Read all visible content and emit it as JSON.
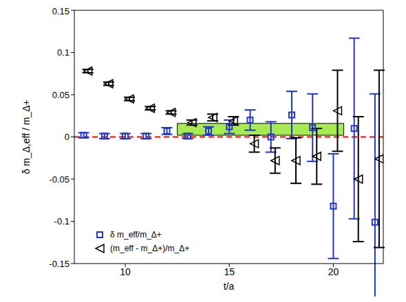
{
  "chart_data": {
    "type": "scatter",
    "x_label": "t/a",
    "y_label": "δ m_Δ,eff / m_Δ+",
    "xlim": [
      7.55,
      22.4
    ],
    "xticks": [
      10,
      15,
      20
    ],
    "ylim": [
      -0.15,
      0.15
    ],
    "yticks": [
      -0.15,
      -0.1,
      -0.05,
      0,
      0.05,
      0.1,
      0.15
    ],
    "legend": "lower left",
    "series": [
      {
        "name": "δ m_eff/m_Δ+",
        "color": "#1f35cc",
        "marker": "square",
        "x": [
          8,
          9,
          10,
          11,
          12,
          13,
          14,
          15,
          16,
          17,
          18,
          19,
          20,
          21,
          22
        ],
        "values": [
          0.002,
          0.001,
          0.001,
          0.001,
          0.007,
          0.001,
          0.007,
          0.012,
          0.02,
          0.0,
          0.026,
          0.011,
          -0.082,
          0.01,
          -0.101
        ],
        "errors": [
          0.003,
          0.003,
          0.003,
          0.003,
          0.004,
          0.003,
          0.005,
          0.008,
          0.012,
          0.018,
          0.028,
          0.04,
          0.062,
          0.107,
          0.152
        ]
      },
      {
        "name": "(m_eff - m_Δ+)/m_Δ+",
        "color": "#000000",
        "marker": "triangle",
        "x": [
          8.2,
          9.2,
          10.2,
          11.2,
          12.2,
          13.2,
          14.2,
          15.2,
          16.2,
          17.2,
          18.2,
          19.2,
          20.2,
          21.2,
          22.2
        ],
        "values": [
          0.078,
          0.063,
          0.045,
          0.034,
          0.029,
          0.017,
          0.023,
          0.019,
          -0.008,
          -0.028,
          -0.028,
          -0.023,
          0.031,
          -0.05,
          -0.026
        ],
        "errors": [
          0.002,
          0.002,
          0.002,
          0.002,
          0.002,
          0.003,
          0.004,
          0.005,
          0.01,
          0.015,
          0.027,
          0.033,
          0.048,
          0.074,
          0.105
        ]
      }
    ],
    "band": {
      "x": [
        12.5,
        20.5
      ],
      "y": [
        0.002,
        0.016
      ],
      "color": "#99e635"
    },
    "reference_line": {
      "y": 0,
      "color": "#ff0000",
      "line_style": "dashed"
    }
  }
}
